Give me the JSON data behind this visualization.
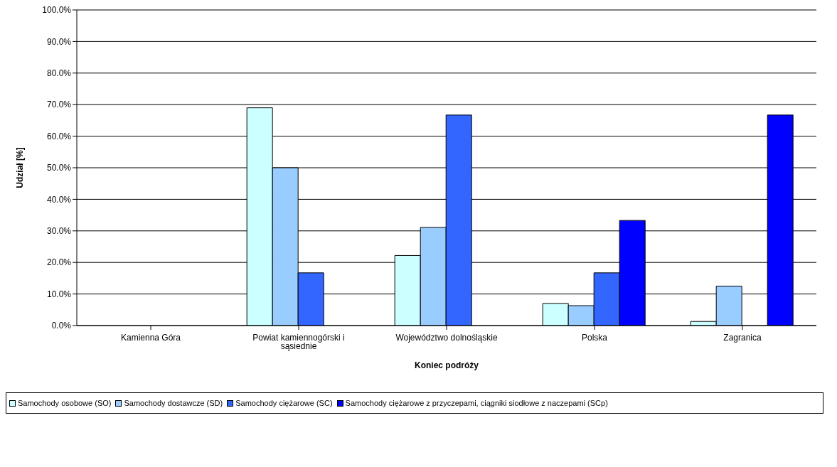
{
  "chart_data": {
    "type": "bar",
    "xlabel": "Koniec podróży",
    "ylabel": "Udział [%]",
    "categories": [
      "Kamienna Góra",
      "Powiat kamiennogórski i sąsiednie",
      "Województwo dolnośląskie",
      "Polska",
      "Zagranica"
    ],
    "series": [
      {
        "name": "Samochody osobowe (SO)",
        "color": "#ccffff",
        "values": [
          0,
          69.0,
          22.2,
          7.0,
          1.3
        ]
      },
      {
        "name": "Samochody dostawcze (SD)",
        "color": "#99ccff",
        "values": [
          0,
          50.0,
          31.1,
          6.3,
          12.5
        ]
      },
      {
        "name": "Samochody ciężarowe (SC)",
        "color": "#3366ff",
        "values": [
          0,
          16.7,
          66.7,
          16.7,
          0
        ]
      },
      {
        "name": "Samochody ciężarowe z przyczepami, ciągniki siodłowe z naczepami (SCp)",
        "color": "#0000ff",
        "values": [
          0,
          0,
          0,
          33.3,
          66.7
        ]
      }
    ],
    "ylim": [
      0,
      100
    ],
    "yticks": [
      {
        "value": 0,
        "label": "0.0%"
      },
      {
        "value": 10,
        "label": "10.0%"
      },
      {
        "value": 20,
        "label": "20.0%"
      },
      {
        "value": 30,
        "label": "30.0%"
      },
      {
        "value": 40,
        "label": "40.0%"
      },
      {
        "value": 50,
        "label": "50.0%"
      },
      {
        "value": 60,
        "label": "60.0%"
      },
      {
        "value": 70,
        "label": "70.0%"
      },
      {
        "value": 80,
        "label": "80.0%"
      },
      {
        "value": 90,
        "label": "90.0%"
      },
      {
        "value": 100,
        "label": "100.0%"
      }
    ],
    "grid": "y",
    "legend": "bottom"
  }
}
